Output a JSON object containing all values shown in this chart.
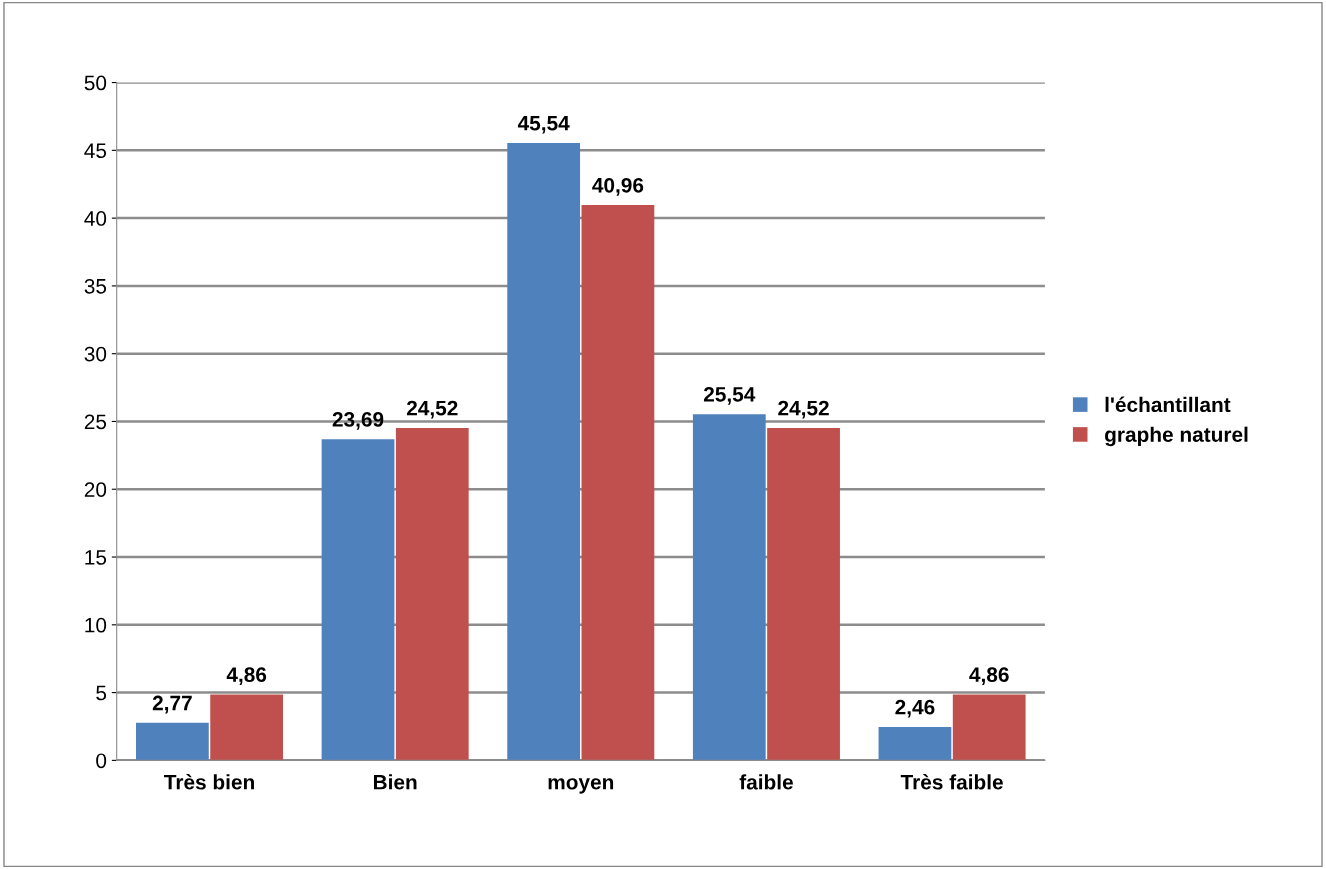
{
  "chart_data": {
    "type": "bar",
    "categories": [
      "Très bien",
      "Bien",
      "moyen",
      "faible",
      "Très faible"
    ],
    "series": [
      {
        "name": "l'échantillant",
        "color": "#4f81bd",
        "values": [
          2.77,
          23.69,
          45.54,
          25.54,
          2.46
        ],
        "value_labels": [
          "2,77",
          "23,69",
          "45,54",
          "25,54",
          "2,46"
        ]
      },
      {
        "name": "graphe naturel",
        "color": "#c0504d",
        "values": [
          4.86,
          24.52,
          40.96,
          24.52,
          4.86
        ],
        "value_labels": [
          "4,86",
          "24,52",
          "40,96",
          "24,52",
          "4,86"
        ]
      }
    ],
    "ylim": [
      0,
      50
    ],
    "yticks": [
      0,
      5,
      10,
      15,
      20,
      25,
      30,
      35,
      40,
      45,
      50
    ],
    "grid": "y",
    "legend": "right"
  }
}
